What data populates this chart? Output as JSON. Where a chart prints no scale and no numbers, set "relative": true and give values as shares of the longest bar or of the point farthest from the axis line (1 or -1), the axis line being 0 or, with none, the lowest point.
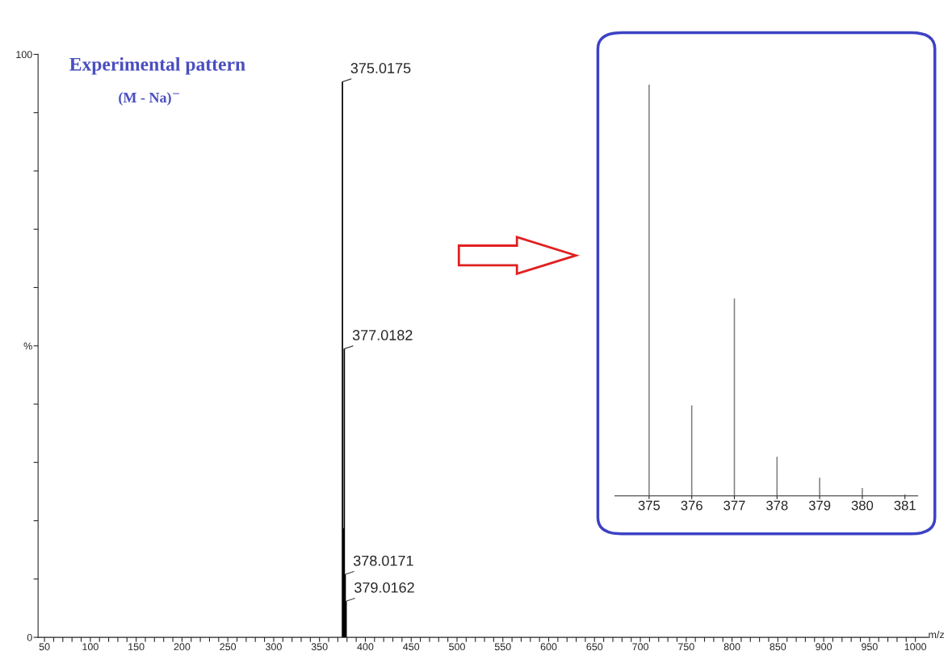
{
  "chart_data": [
    {
      "type": "bar",
      "title": "Experimental pattern",
      "subtitle": "(M - Na)$^{−}$",
      "xlabel": "m/z",
      "x": [
        375.0175,
        376,
        377.0182,
        378.0171,
        379.0162
      ],
      "values": [
        95.3,
        18.7,
        49.5,
        10.8,
        6.2
      ],
      "color": "#000000",
      "annotations": [
        {
          "text": "375.0175",
          "x": 375.0175,
          "y": 95.3
        },
        {
          "text": "377.0182",
          "x": 377.0182,
          "y": 49.5
        },
        {
          "text": "378.0171",
          "x": 378.0171,
          "y": 10.8
        },
        {
          "text": "379.0162",
          "x": 379.0162,
          "y": 6.2
        }
      ],
      "xlim": [
        43,
        1014
      ],
      "ylim": [
        0,
        100
      ],
      "xticks": [
        50,
        {
          "value": 60,
          "label": null
        },
        {
          "value": 70,
          "label": null
        },
        {
          "value": 80,
          "label": null
        },
        {
          "value": 90,
          "label": null
        },
        100,
        {
          "value": 110,
          "label": null
        },
        {
          "value": 120,
          "label": null
        },
        {
          "value": 130,
          "label": null
        },
        {
          "value": 140,
          "label": null
        },
        150,
        {
          "value": 160,
          "label": null
        },
        {
          "value": 170,
          "label": null
        },
        {
          "value": 180,
          "label": null
        },
        {
          "value": 190,
          "label": null
        },
        200,
        {
          "value": 210,
          "label": null
        },
        {
          "value": 220,
          "label": null
        },
        {
          "value": 230,
          "label": null
        },
        {
          "value": 240,
          "label": null
        },
        250,
        {
          "value": 260,
          "label": null
        },
        {
          "value": 270,
          "label": null
        },
        {
          "value": 280,
          "label": null
        },
        {
          "value": 290,
          "label": null
        },
        300,
        {
          "value": 310,
          "label": null
        },
        {
          "value": 320,
          "label": null
        },
        {
          "value": 330,
          "label": null
        },
        {
          "value": 340,
          "label": null
        },
        350,
        {
          "value": 360,
          "label": null
        },
        {
          "value": 370,
          "label": null
        },
        {
          "value": 380,
          "label": null
        },
        {
          "value": 390,
          "label": null
        },
        400,
        {
          "value": 410,
          "label": null
        },
        {
          "value": 420,
          "label": null
        },
        {
          "value": 430,
          "label": null
        },
        {
          "value": 440,
          "label": null
        },
        450,
        {
          "value": 460,
          "label": null
        },
        {
          "value": 470,
          "label": null
        },
        {
          "value": 480,
          "label": null
        },
        {
          "value": 490,
          "label": null
        },
        500,
        {
          "value": 510,
          "label": null
        },
        {
          "value": 520,
          "label": null
        },
        {
          "value": 530,
          "label": null
        },
        {
          "value": 540,
          "label": null
        },
        550,
        {
          "value": 560,
          "label": null
        },
        {
          "value": 570,
          "label": null
        },
        {
          "value": 580,
          "label": null
        },
        {
          "value": 590,
          "label": null
        },
        600,
        {
          "value": 610,
          "label": null
        },
        {
          "value": 620,
          "label": null
        },
        {
          "value": 630,
          "label": null
        },
        {
          "value": 640,
          "label": null
        },
        650,
        {
          "value": 660,
          "label": null
        },
        {
          "value": 670,
          "label": null
        },
        {
          "value": 680,
          "label": null
        },
        {
          "value": 690,
          "label": null
        },
        700,
        {
          "value": 710,
          "label": null
        },
        {
          "value": 720,
          "label": null
        },
        {
          "value": 730,
          "label": null
        },
        {
          "value": 740,
          "label": null
        },
        750,
        {
          "value": 760,
          "label": null
        },
        {
          "value": 770,
          "label": null
        },
        {
          "value": 780,
          "label": null
        },
        {
          "value": 790,
          "label": null
        },
        800,
        {
          "value": 810,
          "label": null
        },
        {
          "value": 820,
          "label": null
        },
        {
          "value": 830,
          "label": null
        },
        {
          "value": 840,
          "label": null
        },
        850,
        {
          "value": 860,
          "label": null
        },
        {
          "value": 870,
          "label": null
        },
        {
          "value": 880,
          "label": null
        },
        {
          "value": 890,
          "label": null
        },
        900,
        {
          "value": 910,
          "label": null
        },
        {
          "value": 920,
          "label": null
        },
        {
          "value": 930,
          "label": null
        },
        {
          "value": 940,
          "label": null
        },
        950,
        {
          "value": 960,
          "label": null
        },
        {
          "value": 970,
          "label": null
        },
        {
          "value": 980,
          "label": null
        },
        {
          "value": 990,
          "label": null
        },
        1000
      ],
      "yticks": [
        0,
        {
          "value": 10,
          "label": null
        },
        {
          "value": 20,
          "label": null
        },
        {
          "value": 30,
          "label": null
        },
        {
          "value": 40,
          "label": null
        },
        {
          "value": 50,
          "label": "%"
        },
        {
          "value": 60,
          "label": null
        },
        {
          "value": 70,
          "label": null
        },
        {
          "value": 80,
          "label": null
        },
        {
          "value": 90,
          "label": null
        },
        100
      ],
      "grid": false,
      "legend": false
    },
    {
      "type": "bar",
      "relative": true,
      "x": [
        375,
        376,
        377,
        378,
        379,
        380,
        381
      ],
      "values": [
        1,
        0.22,
        0.48,
        0.095,
        0.044,
        0.019,
        0.004
      ],
      "color": "#808080",
      "xlim": [
        374.2,
        381.3
      ],
      "xticks": [
        375,
        376,
        377,
        378,
        379,
        380,
        381
      ],
      "tick_labels": "x",
      "grid": false,
      "legend": false
    }
  ]
}
